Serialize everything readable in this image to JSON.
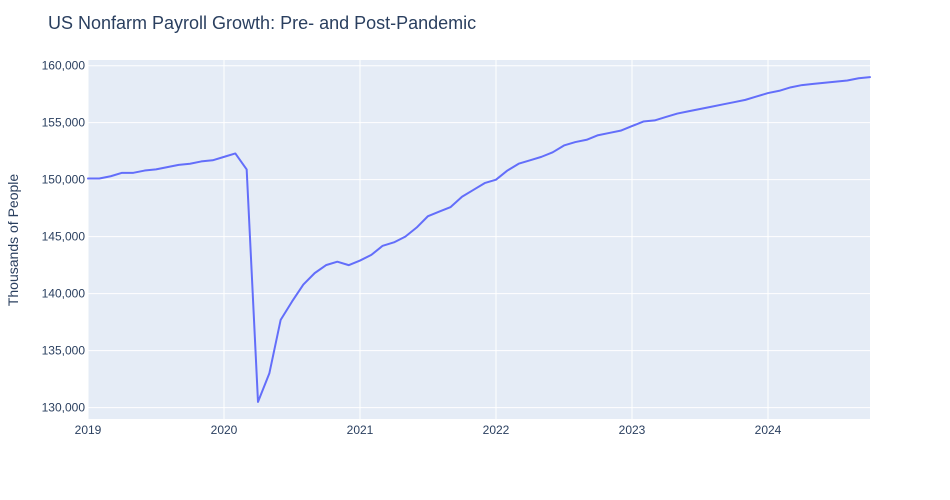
{
  "chart_data": {
    "type": "line",
    "title": "US Nonfarm Payroll Growth: Pre- and Post-Pandemic",
    "xlabel": "",
    "ylabel": "Thousands of People",
    "grid": true,
    "xlim": [
      "2019-01-01",
      "2024-10-01"
    ],
    "ylim": [
      129000,
      160500
    ],
    "x_ticks": [
      "2019",
      "2020",
      "2021",
      "2022",
      "2023",
      "2024"
    ],
    "y_ticks": [
      "130,000",
      "135,000",
      "140,000",
      "145,000",
      "150,000",
      "155,000",
      "160,000"
    ],
    "colors": {
      "line": "#636efa",
      "plot_bg": "#e5ecf6",
      "grid": "#ffffff",
      "text": "#2a3f5f"
    },
    "x": [
      "2019-01",
      "2019-02",
      "2019-03",
      "2019-04",
      "2019-05",
      "2019-06",
      "2019-07",
      "2019-08",
      "2019-09",
      "2019-10",
      "2019-11",
      "2019-12",
      "2020-01",
      "2020-02",
      "2020-03",
      "2020-04",
      "2020-05",
      "2020-06",
      "2020-07",
      "2020-08",
      "2020-09",
      "2020-10",
      "2020-11",
      "2020-12",
      "2021-01",
      "2021-02",
      "2021-03",
      "2021-04",
      "2021-05",
      "2021-06",
      "2021-07",
      "2021-08",
      "2021-09",
      "2021-10",
      "2021-11",
      "2021-12",
      "2022-01",
      "2022-02",
      "2022-03",
      "2022-04",
      "2022-05",
      "2022-06",
      "2022-07",
      "2022-08",
      "2022-09",
      "2022-10",
      "2022-11",
      "2022-12",
      "2023-01",
      "2023-02",
      "2023-03",
      "2023-04",
      "2023-05",
      "2023-06",
      "2023-07",
      "2023-08",
      "2023-09",
      "2023-10",
      "2023-11",
      "2023-12",
      "2024-01",
      "2024-02",
      "2024-03",
      "2024-04",
      "2024-05",
      "2024-06",
      "2024-07",
      "2024-08",
      "2024-09",
      "2024-10"
    ],
    "series": [
      {
        "values": [
          150100,
          150100,
          150300,
          150600,
          150600,
          150800,
          150900,
          151100,
          151300,
          151400,
          151600,
          151700,
          152000,
          152300,
          150900,
          130500,
          133000,
          137700,
          139300,
          140800,
          141800,
          142500,
          142800,
          142500,
          142900,
          143400,
          144200,
          144500,
          145000,
          145800,
          146800,
          147200,
          147600,
          148500,
          149100,
          149700,
          150000,
          150800,
          151400,
          151700,
          152000,
          152400,
          153000,
          153300,
          153500,
          153900,
          154100,
          154300,
          154700,
          155100,
          155200,
          155500,
          155800,
          156000,
          156200,
          156400,
          156600,
          156800,
          157000,
          157300,
          157600,
          157800,
          158100,
          158300,
          158400,
          158500,
          158600,
          158700,
          158900,
          159000
        ]
      }
    ]
  }
}
